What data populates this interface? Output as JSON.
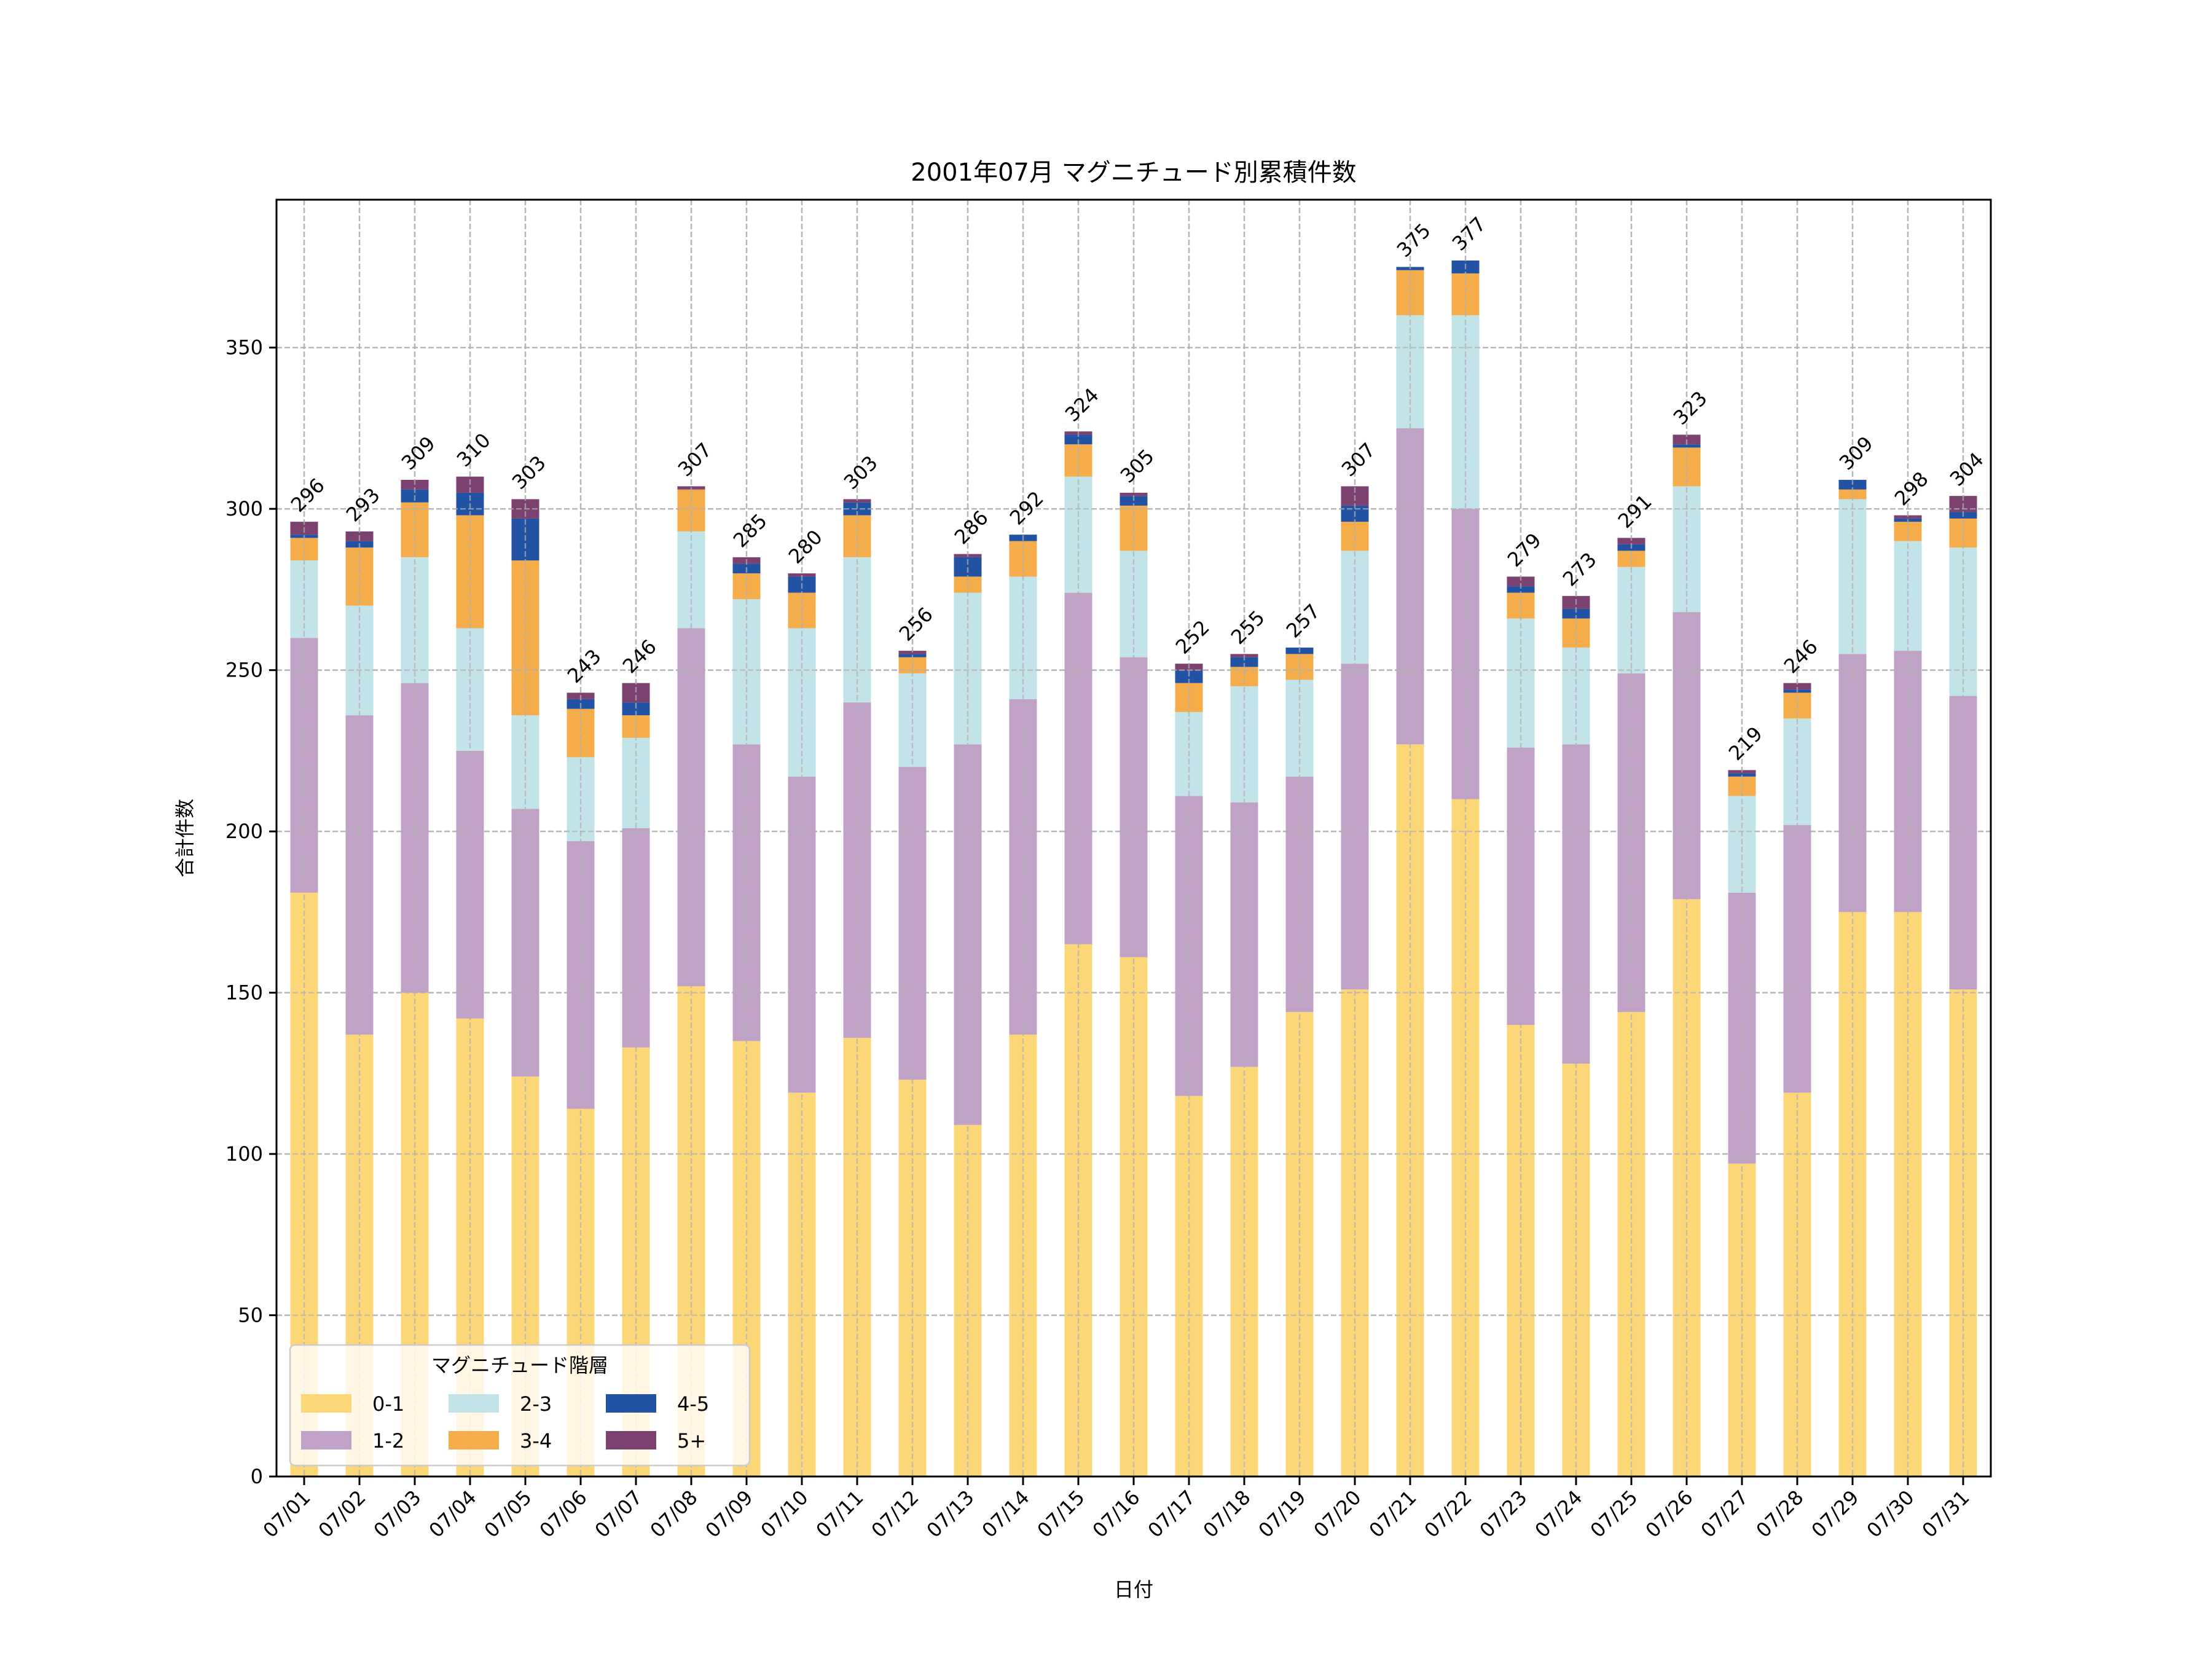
{
  "chart_data": {
    "type": "bar",
    "stacked": true,
    "title": "2001年07月 マグニチュード別累積件数",
    "xlabel": "日付",
    "ylabel": "合計件数",
    "ylim": [
      0,
      395.85
    ],
    "yticks": [
      0,
      50,
      100,
      150,
      200,
      250,
      300,
      350
    ],
    "grid": true,
    "legend": {
      "title": "マグニチュード階層",
      "placement": "lower-left",
      "columns": 3
    },
    "categories": [
      "07/01",
      "07/02",
      "07/03",
      "07/04",
      "07/05",
      "07/06",
      "07/07",
      "07/08",
      "07/09",
      "07/10",
      "07/11",
      "07/12",
      "07/13",
      "07/14",
      "07/15",
      "07/16",
      "07/17",
      "07/18",
      "07/19",
      "07/20",
      "07/21",
      "07/22",
      "07/23",
      "07/24",
      "07/25",
      "07/26",
      "07/27",
      "07/28",
      "07/29",
      "07/30",
      "07/31"
    ],
    "series": [
      {
        "name": "0-1",
        "color": "#FCD777",
        "values": [
          181,
          137,
          150,
          142,
          124,
          114,
          133,
          152,
          135,
          119,
          136,
          123,
          109,
          137,
          165,
          161,
          118,
          127,
          144,
          151,
          227,
          210,
          140,
          128,
          144,
          179,
          97,
          119,
          175,
          175,
          151
        ]
      },
      {
        "name": "1-2",
        "color": "#C0A2C7",
        "values": [
          79,
          99,
          96,
          83,
          83,
          83,
          68,
          111,
          92,
          98,
          104,
          97,
          118,
          104,
          109,
          93,
          93,
          82,
          73,
          101,
          98,
          90,
          86,
          99,
          105,
          89,
          84,
          83,
          80,
          81,
          91
        ]
      },
      {
        "name": "2-3",
        "color": "#C2E4E8",
        "values": [
          24,
          34,
          39,
          38,
          29,
          26,
          28,
          30,
          45,
          46,
          45,
          29,
          47,
          38,
          36,
          33,
          26,
          36,
          30,
          35,
          35,
          60,
          40,
          30,
          33,
          39,
          30,
          33,
          48,
          34,
          46
        ]
      },
      {
        "name": "3-4",
        "color": "#F5AD4B",
        "values": [
          7,
          18,
          17,
          35,
          48,
          15,
          7,
          13,
          8,
          11,
          13,
          5,
          5,
          11,
          10,
          14,
          9,
          6,
          8,
          9,
          14,
          13,
          8,
          9,
          5,
          12,
          6,
          8,
          3,
          6,
          9
        ]
      },
      {
        "name": "4-5",
        "color": "#2152A3",
        "values": [
          1,
          2,
          4,
          7,
          13,
          3,
          4,
          0,
          3,
          5,
          4,
          1,
          6,
          2,
          3,
          3,
          4,
          3,
          2,
          5,
          1,
          4,
          2,
          3,
          2,
          1,
          1,
          1,
          3,
          1,
          2
        ]
      },
      {
        "name": "5+",
        "color": "#7B416F",
        "values": [
          4,
          3,
          3,
          5,
          6,
          2,
          6,
          1,
          2,
          1,
          1,
          1,
          1,
          0,
          1,
          1,
          2,
          1,
          0,
          6,
          0,
          0,
          3,
          4,
          2,
          3,
          1,
          2,
          0,
          1,
          5
        ]
      }
    ],
    "totals": [
      296,
      293,
      309,
      310,
      303,
      243,
      246,
      307,
      285,
      280,
      303,
      256,
      286,
      292,
      324,
      305,
      252,
      255,
      257,
      307,
      375,
      377,
      279,
      273,
      291,
      323,
      219,
      246,
      309,
      298,
      304
    ]
  }
}
